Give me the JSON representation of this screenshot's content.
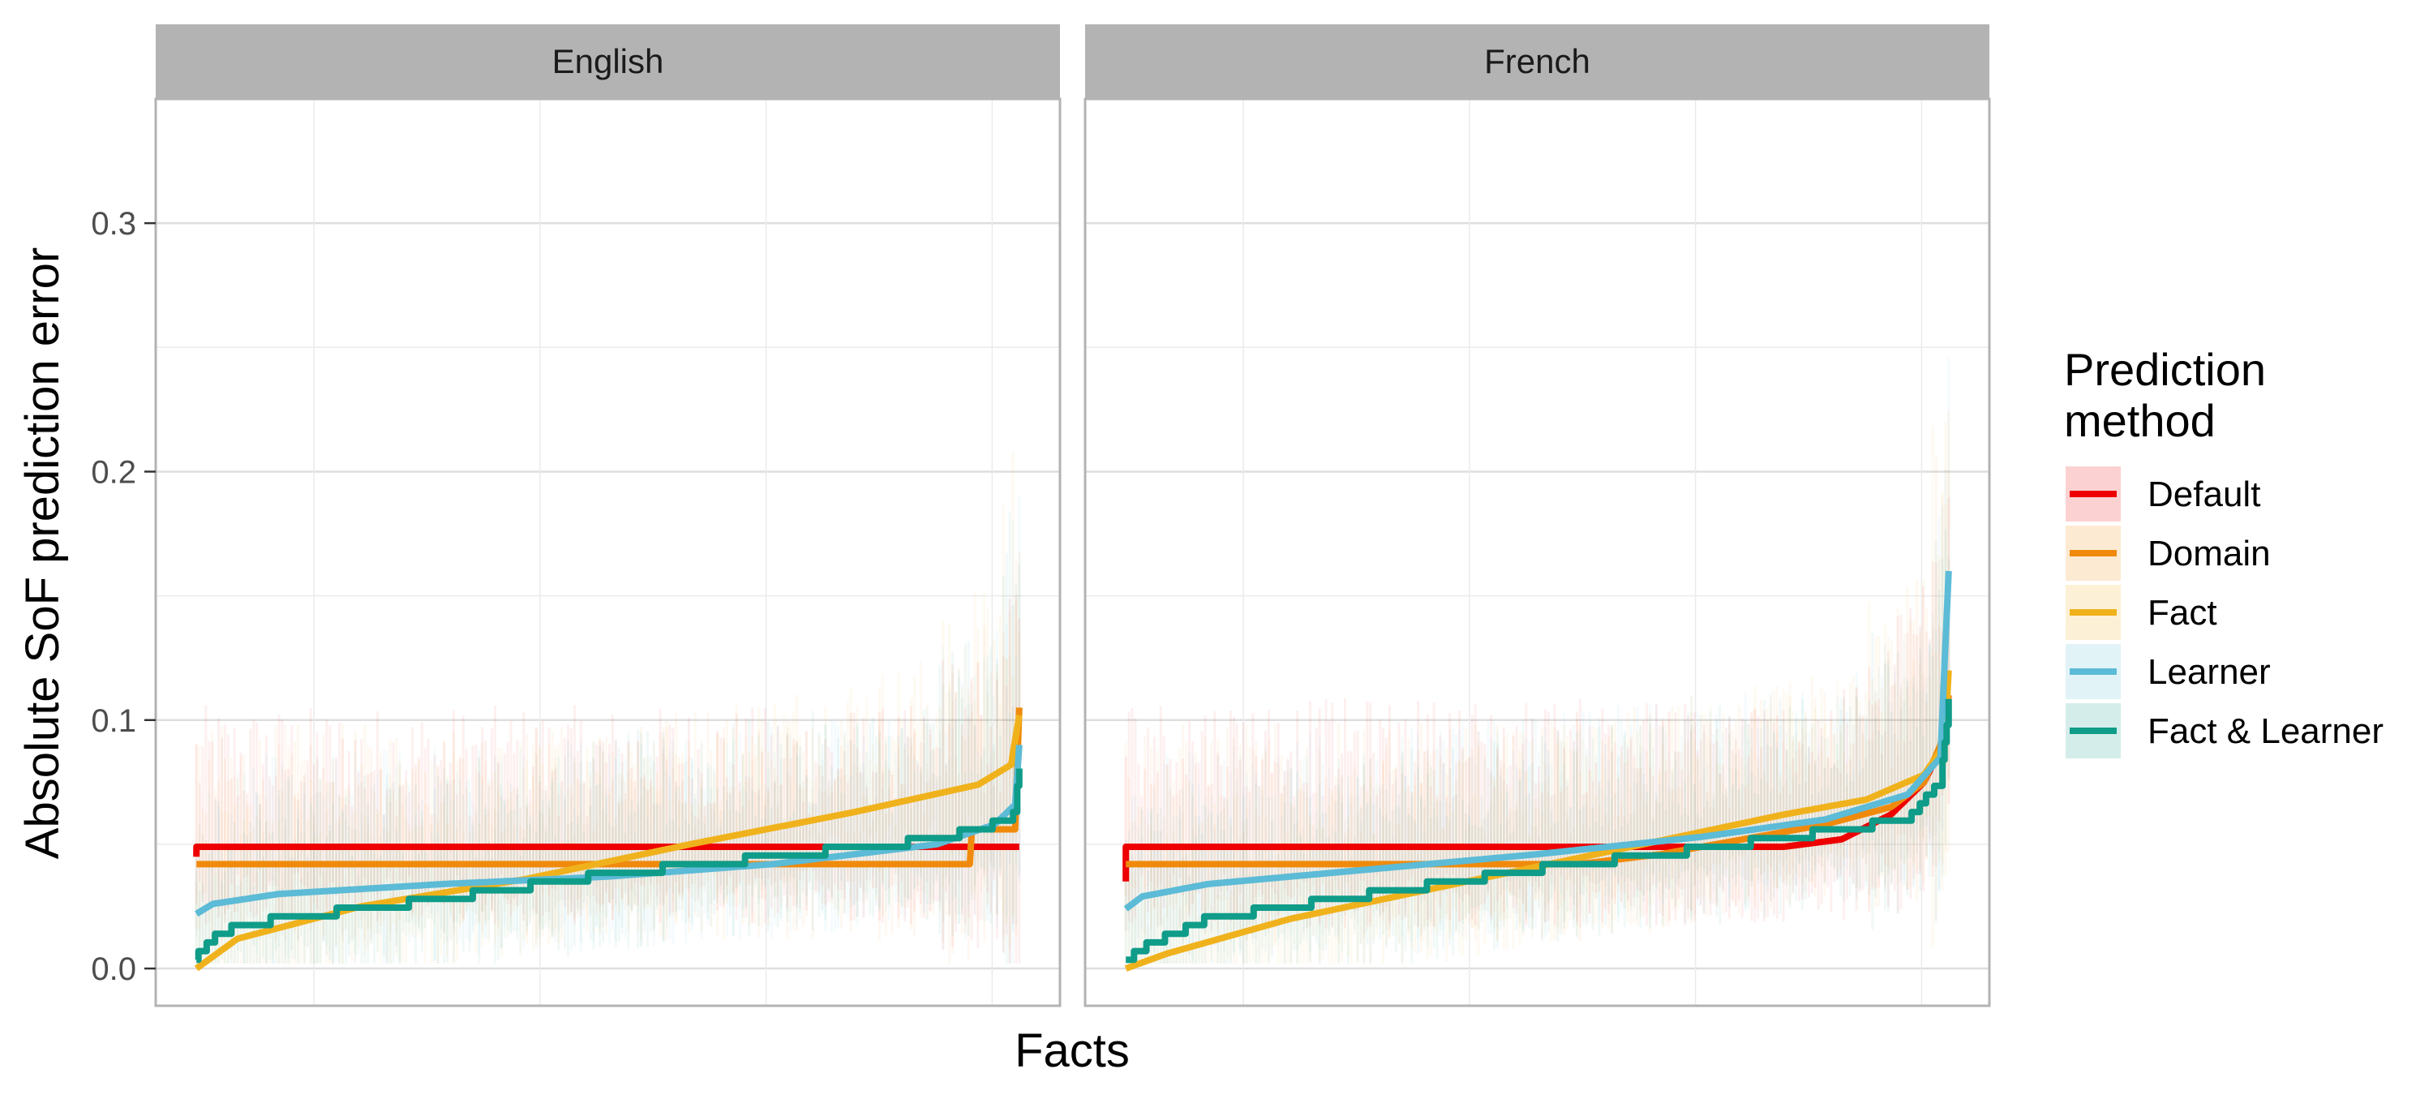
{
  "chart_data": {
    "type": "line",
    "xlabel": "Facts",
    "ylabel": "Absolute SoF prediction error",
    "ylim": [
      -0.015,
      0.35
    ],
    "yticks": [
      0.0,
      0.1,
      0.2,
      0.3
    ],
    "ytick_labels": [
      "0.0",
      "0.1",
      "0.2",
      "0.3"
    ],
    "x_ticks_shown": false,
    "grid": true,
    "legend": {
      "title_lines": [
        "Prediction",
        "method"
      ],
      "placement": "right"
    },
    "colors": {
      "Default": "#ee0000",
      "Domain": "#f08a0c",
      "Fact": "#f0b21c",
      "Learner": "#5cbbd6",
      "Fact & Learner": "#0f9c89"
    },
    "panels": [
      {
        "facet": "English",
        "series": [
          {
            "name": "Default",
            "shape": "const",
            "left_value": 0.045,
            "value": 0.049,
            "end_drop": 0.049
          },
          {
            "name": "Domain",
            "shape": "const_step",
            "value": 0.042,
            "step_at": 0.94,
            "step_value": 0.056,
            "end_value": 0.105
          },
          {
            "name": "Fact",
            "shape": "sigmoid",
            "points": [
              [
                0,
                0.0
              ],
              [
                0.05,
                0.012
              ],
              [
                0.2,
                0.025
              ],
              [
                0.4,
                0.036
              ],
              [
                0.6,
                0.05
              ],
              [
                0.8,
                0.063
              ],
              [
                0.95,
                0.074
              ],
              [
                0.99,
                0.082
              ],
              [
                1,
                0.102
              ]
            ]
          },
          {
            "name": "Learner",
            "shape": "sigmoid",
            "points": [
              [
                0,
                0.022
              ],
              [
                0.02,
                0.026
              ],
              [
                0.1,
                0.03
              ],
              [
                0.3,
                0.034
              ],
              [
                0.5,
                0.037
              ],
              [
                0.7,
                0.042
              ],
              [
                0.9,
                0.05
              ],
              [
                0.97,
                0.058
              ],
              [
                0.995,
                0.066
              ],
              [
                1,
                0.09
              ]
            ]
          },
          {
            "name": "Fact & Learner",
            "shape": "stair",
            "points": [
              [
                0,
                0.005
              ],
              [
                0.03,
                0.015
              ],
              [
                0.1,
                0.02
              ],
              [
                0.3,
                0.028
              ],
              [
                0.5,
                0.038
              ],
              [
                0.7,
                0.045
              ],
              [
                0.9,
                0.052
              ],
              [
                0.97,
                0.058
              ],
              [
                0.995,
                0.062
              ],
              [
                1,
                0.082
              ]
            ]
          }
        ]
      },
      {
        "facet": "French",
        "series": [
          {
            "name": "Default",
            "shape": "const_curve",
            "left_value": 0.035,
            "value": 0.049,
            "curve_start": 0.8,
            "points": [
              [
                0.8,
                0.049
              ],
              [
                0.87,
                0.052
              ],
              [
                0.93,
                0.062
              ],
              [
                0.97,
                0.075
              ],
              [
                0.99,
                0.088
              ],
              [
                1,
                0.11
              ]
            ]
          },
          {
            "name": "Domain",
            "shape": "const_curve",
            "value": 0.042,
            "curve_start": 0.55,
            "points": [
              [
                0.55,
                0.042
              ],
              [
                0.65,
                0.046
              ],
              [
                0.75,
                0.052
              ],
              [
                0.85,
                0.058
              ],
              [
                0.93,
                0.065
              ],
              [
                0.97,
                0.075
              ],
              [
                0.99,
                0.09
              ],
              [
                1,
                0.11
              ]
            ]
          },
          {
            "name": "Fact",
            "shape": "sigmoid",
            "points": [
              [
                0,
                0.0
              ],
              [
                0.05,
                0.006
              ],
              [
                0.2,
                0.02
              ],
              [
                0.4,
                0.034
              ],
              [
                0.6,
                0.048
              ],
              [
                0.8,
                0.062
              ],
              [
                0.9,
                0.068
              ],
              [
                0.97,
                0.078
              ],
              [
                0.995,
                0.09
              ],
              [
                1,
                0.12
              ]
            ]
          },
          {
            "name": "Learner",
            "shape": "sigmoid",
            "points": [
              [
                0,
                0.024
              ],
              [
                0.02,
                0.029
              ],
              [
                0.1,
                0.034
              ],
              [
                0.3,
                0.04
              ],
              [
                0.5,
                0.046
              ],
              [
                0.7,
                0.053
              ],
              [
                0.85,
                0.06
              ],
              [
                0.95,
                0.07
              ],
              [
                0.99,
                0.085
              ],
              [
                1,
                0.16
              ]
            ]
          },
          {
            "name": "Fact & Learner",
            "shape": "stair",
            "points": [
              [
                0,
                0.003
              ],
              [
                0.03,
                0.01
              ],
              [
                0.1,
                0.02
              ],
              [
                0.3,
                0.03
              ],
              [
                0.5,
                0.04
              ],
              [
                0.7,
                0.048
              ],
              [
                0.85,
                0.055
              ],
              [
                0.95,
                0.06
              ],
              [
                0.99,
                0.075
              ],
              [
                1,
                0.108
              ]
            ]
          }
        ]
      }
    ]
  }
}
